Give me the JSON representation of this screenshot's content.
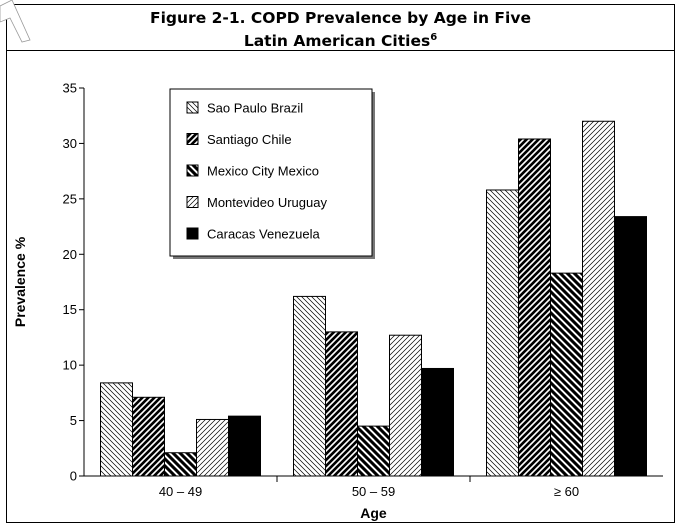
{
  "figure": {
    "title_line1": "Figure 2-1.  COPD Prevalence by Age in Five",
    "title_line2": "Latin American Cities",
    "title_ref": "6"
  },
  "chart_data": {
    "type": "bar",
    "xlabel": "Age",
    "ylabel": "Prevalence %",
    "ylim": [
      0,
      35
    ],
    "yticks": [
      0,
      5,
      10,
      15,
      20,
      25,
      30,
      35
    ],
    "categories": [
      "40 – 49",
      "50 – 59",
      "≥ 60"
    ],
    "series": [
      {
        "name": "Sao Paulo Brazil",
        "pattern": "thin-diag-left",
        "values": [
          8.4,
          16.2,
          25.8
        ]
      },
      {
        "name": "Santiago Chile",
        "pattern": "thick-diag-right",
        "values": [
          7.1,
          13.0,
          30.4
        ]
      },
      {
        "name": "Mexico City Mexico",
        "pattern": "thick-diag-left",
        "values": [
          2.1,
          4.5,
          18.3
        ]
      },
      {
        "name": "Montevideo Uruguay",
        "pattern": "thin-diag-right",
        "values": [
          5.1,
          12.7,
          32.0
        ]
      },
      {
        "name": "Caracas Venezuela",
        "pattern": "solid",
        "values": [
          5.4,
          9.7,
          23.4
        ]
      }
    ],
    "grid": false,
    "legend_position": "top-left"
  }
}
